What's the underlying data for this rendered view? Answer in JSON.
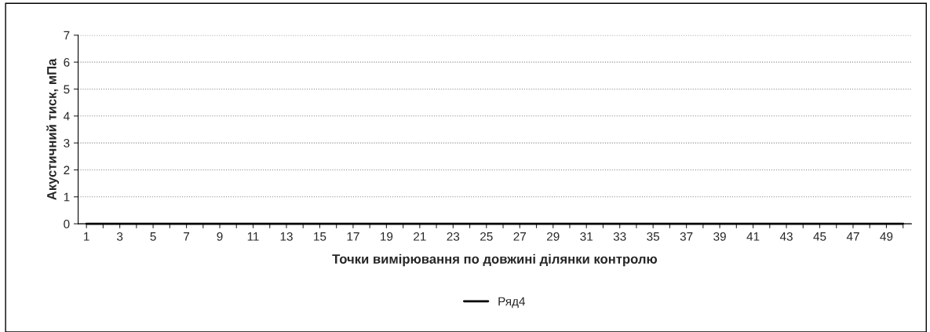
{
  "chart_data": {
    "type": "line",
    "xlabel": "Точки вимірювання по довжині ділянки контролю",
    "ylabel": "Акустичний тиск, мПа",
    "categories": [
      "1",
      null,
      "3",
      null,
      "5",
      null,
      "7",
      null,
      "9",
      null,
      "11",
      null,
      "13",
      null,
      "15",
      null,
      "17",
      null,
      "19",
      null,
      "21",
      null,
      "23",
      null,
      "25",
      null,
      "27",
      null,
      "29",
      null,
      "31",
      null,
      "33",
      null,
      "35",
      null,
      "37",
      null,
      "39",
      null,
      "41",
      null,
      "43",
      null,
      "45",
      null,
      "47",
      null,
      "49",
      null
    ],
    "series": [
      {
        "name": "Ряд4",
        "color": "#000000",
        "values": [
          0,
          0,
          0,
          0,
          0,
          0,
          0,
          0,
          0,
          0,
          0,
          0,
          0,
          0,
          0,
          0,
          0,
          0,
          0,
          0,
          0,
          0,
          0,
          0,
          0,
          0,
          0,
          0,
          0,
          0,
          0,
          0,
          0,
          0,
          0,
          0,
          0,
          0,
          0,
          0,
          0,
          0,
          0,
          0,
          0,
          0,
          0,
          0,
          0,
          0
        ]
      }
    ],
    "ylim": [
      0,
      7
    ],
    "yticks": [
      0,
      1,
      2,
      3,
      4,
      5,
      6,
      7
    ],
    "grid": "y",
    "legend": "bottom",
    "marker": "none",
    "line_style": "solid"
  }
}
